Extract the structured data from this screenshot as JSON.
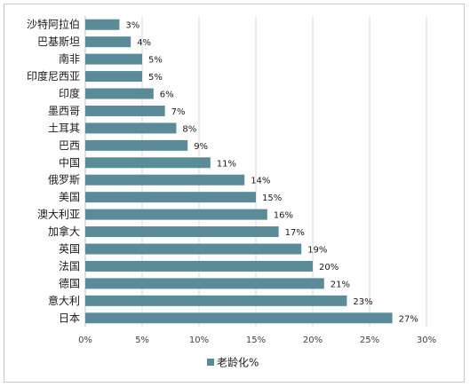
{
  "chart_data": {
    "type": "bar",
    "orientation": "horizontal",
    "categories": [
      "沙特阿拉伯",
      "巴基斯坦",
      "南非",
      "印度尼西亚",
      "印度",
      "墨西哥",
      "土耳其",
      "巴西",
      "中国",
      "俄罗斯",
      "美国",
      "澳大利亚",
      "加拿大",
      "英国",
      "法国",
      "德国",
      "意大利",
      "日本"
    ],
    "series": [
      {
        "name": "老龄化%",
        "values": [
          3,
          4,
          5,
          5,
          6,
          7,
          8,
          9,
          11,
          14,
          15,
          16,
          17,
          19,
          20,
          21,
          23,
          27
        ],
        "value_labels": [
          "3%",
          "4%",
          "5%",
          "5%",
          "6%",
          "7%",
          "8%",
          "9%",
          "11%",
          "14%",
          "15%",
          "16%",
          "17%",
          "19%",
          "20%",
          "21%",
          "23%",
          "27%"
        ],
        "color": "#5b8a99"
      }
    ],
    "xlim": [
      0,
      30
    ],
    "x_ticks": [
      0,
      5,
      10,
      15,
      20,
      25,
      30
    ],
    "x_tick_labels": [
      "0%",
      "5%",
      "10%",
      "15%",
      "20%",
      "25%",
      "30%"
    ],
    "grid": true,
    "legend_position": "bottom"
  }
}
